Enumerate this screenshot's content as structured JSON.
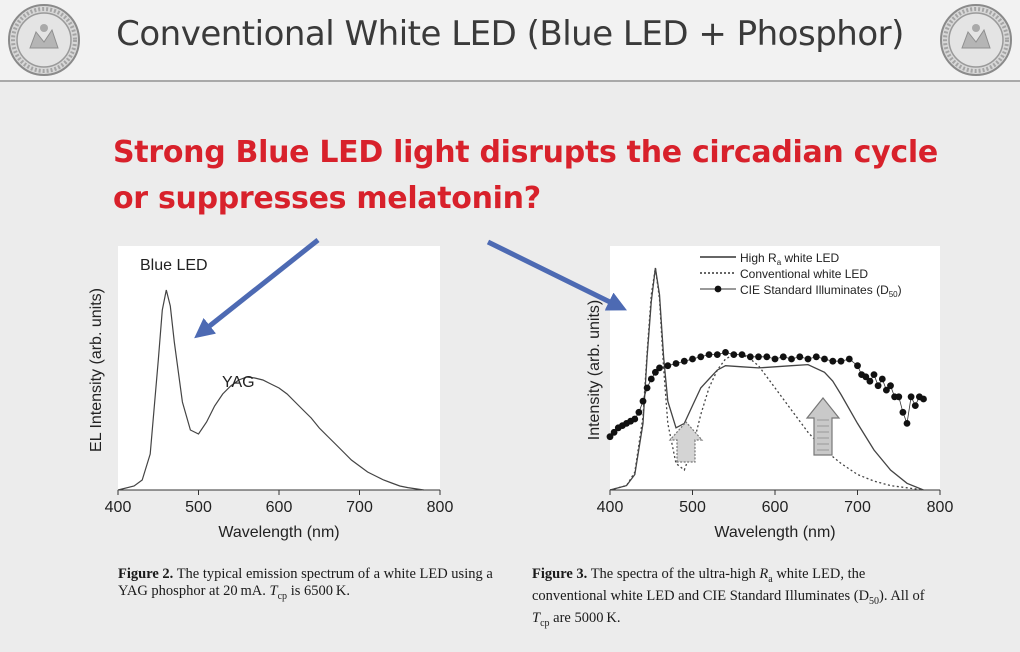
{
  "slide": {
    "title": "Conventional White LED (Blue LED + Phosphor)",
    "headline_line1": "Strong Blue LED light disrupts the circadian cycle",
    "headline_line2": "or suppresses melatonin?"
  },
  "captions": {
    "fig2": {
      "label": "Figure 2.",
      "line1": "The typical emission spectrum of a white LED using a",
      "line2_a": "YAG phosphor at 20 mA. ",
      "tcp": "T",
      "tcp_sub": "cp",
      "line2_b": " is 6500 K."
    },
    "fig3": {
      "label": "Figure 3.",
      "line1_a": "The spectra of the ultra-high ",
      "ra": "R",
      "ra_sub": "a",
      "line1_b": " white LED, the",
      "line2_a": "conventional white LED and CIE Standard Illuminates (D",
      "line2_sub": "50",
      "line2_b": ").  All of",
      "tcp": "T",
      "tcp_sub": "cp",
      "line3_b": " are 5000 K."
    }
  },
  "chart_data": [
    {
      "type": "line",
      "xlabel": "Wavelength (nm)",
      "ylabel": "EL Intensity (arb. units)",
      "xlim": [
        400,
        800
      ],
      "xticks": [
        "400",
        "500",
        "600",
        "700",
        "800"
      ],
      "annotations": [
        {
          "text": "Blue LED",
          "x": 460
        },
        {
          "text": "YAG",
          "x": 560
        }
      ],
      "series": [
        {
          "color": "#444444",
          "x": [
            400,
            420,
            430,
            440,
            450,
            455,
            460,
            465,
            470,
            480,
            490,
            500,
            510,
            520,
            530,
            540,
            550,
            560,
            570,
            580,
            590,
            600,
            610,
            620,
            630,
            640,
            650,
            660,
            670,
            680,
            690,
            700,
            710,
            720,
            730,
            740,
            750,
            760,
            780
          ],
          "y": [
            0.0,
            0.02,
            0.05,
            0.18,
            0.65,
            0.9,
            1.0,
            0.92,
            0.74,
            0.44,
            0.3,
            0.28,
            0.34,
            0.42,
            0.48,
            0.52,
            0.55,
            0.565,
            0.56,
            0.55,
            0.53,
            0.51,
            0.48,
            0.44,
            0.4,
            0.36,
            0.31,
            0.27,
            0.23,
            0.19,
            0.15,
            0.12,
            0.09,
            0.07,
            0.05,
            0.035,
            0.02,
            0.012,
            0.0
          ]
        }
      ]
    },
    {
      "type": "line",
      "xlabel": "Wavelength (nm)",
      "ylabel": "Intensity (arb. units)",
      "xlim": [
        400,
        800
      ],
      "xticks": [
        "400",
        "500",
        "600",
        "700",
        "800"
      ],
      "legend_position": "top-right",
      "series": [
        {
          "name": "High R",
          "name_sub": "a",
          "name_suffix": " white LED",
          "style": "solid",
          "x": [
            400,
            420,
            430,
            440,
            445,
            450,
            455,
            460,
            465,
            470,
            480,
            490,
            500,
            510,
            520,
            530,
            540,
            560,
            580,
            600,
            620,
            640,
            660,
            670,
            680,
            700,
            720,
            740,
            760,
            780
          ],
          "y": [
            0.0,
            0.02,
            0.07,
            0.3,
            0.6,
            0.85,
            1.0,
            0.88,
            0.6,
            0.4,
            0.28,
            0.3,
            0.38,
            0.46,
            0.5,
            0.54,
            0.56,
            0.555,
            0.55,
            0.555,
            0.56,
            0.565,
            0.53,
            0.49,
            0.43,
            0.3,
            0.18,
            0.09,
            0.03,
            0.0
          ]
        },
        {
          "name": "Conventional white LED",
          "style": "dotted",
          "x": [
            400,
            420,
            430,
            440,
            445,
            450,
            455,
            460,
            465,
            470,
            480,
            490,
            500,
            510,
            520,
            530,
            540,
            550,
            560,
            570,
            580,
            590,
            600,
            620,
            640,
            660,
            680,
            700,
            720,
            740,
            760,
            780
          ],
          "y": [
            0.0,
            0.02,
            0.08,
            0.33,
            0.62,
            0.88,
            1.0,
            0.86,
            0.55,
            0.3,
            0.12,
            0.09,
            0.19,
            0.34,
            0.46,
            0.54,
            0.59,
            0.61,
            0.61,
            0.59,
            0.56,
            0.51,
            0.46,
            0.36,
            0.26,
            0.18,
            0.12,
            0.07,
            0.04,
            0.02,
            0.01,
            0.0
          ]
        },
        {
          "name": "CIE Standard Illuminates (D",
          "name_sub": "50",
          "name_suffix": ")",
          "style": "dots",
          "x": [
            400,
            405,
            410,
            415,
            420,
            425,
            430,
            435,
            440,
            445,
            450,
            455,
            460,
            470,
            480,
            490,
            500,
            510,
            520,
            530,
            540,
            550,
            560,
            570,
            580,
            590,
            600,
            610,
            620,
            630,
            640,
            650,
            660,
            670,
            680,
            690,
            700,
            705,
            710,
            715,
            720,
            725,
            730,
            735,
            740,
            745,
            750,
            755,
            760,
            765,
            770,
            775,
            780
          ],
          "y": [
            0.24,
            0.26,
            0.28,
            0.29,
            0.3,
            0.31,
            0.32,
            0.35,
            0.4,
            0.46,
            0.5,
            0.53,
            0.55,
            0.56,
            0.57,
            0.58,
            0.59,
            0.6,
            0.61,
            0.61,
            0.62,
            0.61,
            0.61,
            0.6,
            0.6,
            0.6,
            0.59,
            0.6,
            0.59,
            0.6,
            0.59,
            0.6,
            0.59,
            0.58,
            0.58,
            0.59,
            0.56,
            0.52,
            0.51,
            0.49,
            0.52,
            0.47,
            0.5,
            0.45,
            0.47,
            0.42,
            0.42,
            0.35,
            0.3,
            0.42,
            0.38,
            0.42,
            0.41
          ]
        }
      ]
    }
  ],
  "colors": {
    "title_text": "#3a3a3a",
    "headline": "#d8212b",
    "arrow": "#4d6ab3",
    "axes": "#333333"
  }
}
